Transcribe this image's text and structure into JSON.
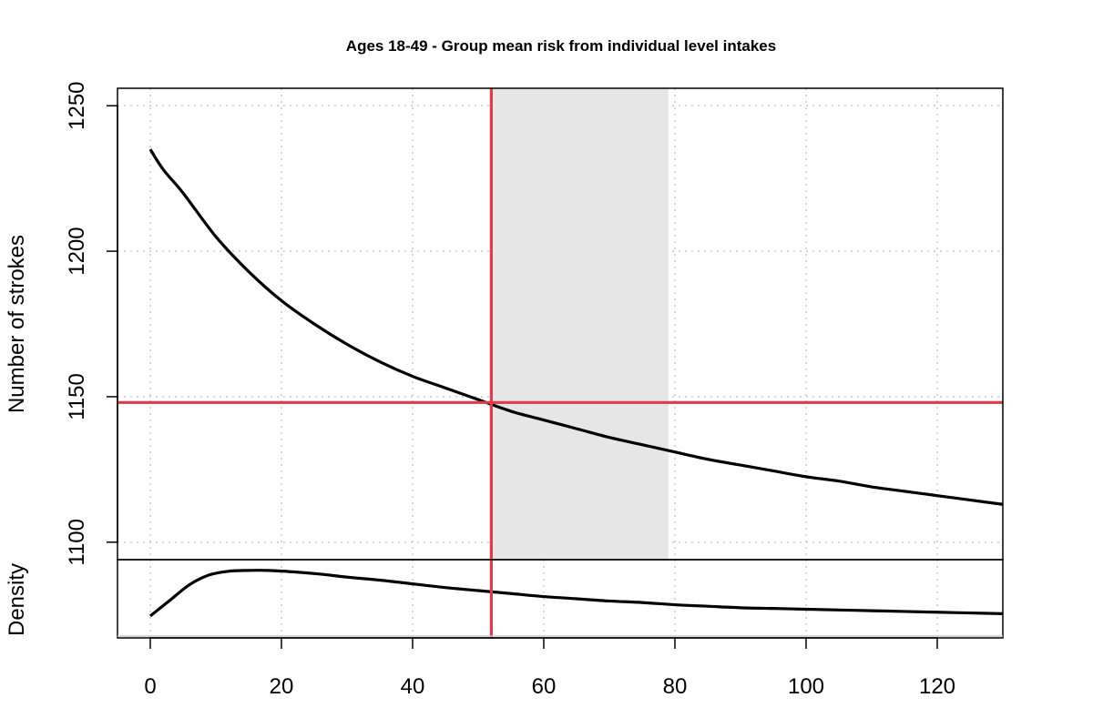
{
  "chart_data": {
    "type": "line",
    "title": "Ages 18-49 - Group mean risk from individual level intakes",
    "ylabel": "Number of strokes",
    "density_label": "Density",
    "xlim": [
      -5,
      130
    ],
    "x_ticks": [
      0,
      20,
      40,
      60,
      80,
      100,
      120
    ],
    "ylim": [
      1094,
      1256
    ],
    "y_ticks": [
      1100,
      1150,
      1200,
      1250
    ],
    "grid": true,
    "shaded_interval": [
      52,
      79
    ],
    "reference_x": 52,
    "reference_y": 1148,
    "colors": {
      "reference": "#df3b4e",
      "shade": "#e6e6e6",
      "curve": "#000000",
      "grid": "#c8c8c8"
    },
    "series": [
      {
        "x": [
          0,
          2,
          5,
          10,
          15,
          20,
          25,
          30,
          35,
          40,
          45,
          50,
          55,
          60,
          65,
          70,
          75,
          80,
          85,
          90,
          95,
          100,
          105,
          110,
          115,
          120,
          125,
          130
        ],
        "values": [
          1235,
          1228,
          1220,
          1205,
          1193,
          1183,
          1175,
          1168,
          1162,
          1157,
          1153,
          1149,
          1145,
          1142,
          1139,
          1136,
          1133.5,
          1131,
          1128.5,
          1126.5,
          1124.5,
          1122.5,
          1121,
          1119,
          1117.5,
          1116,
          1114.5,
          1113
        ]
      }
    ],
    "density": {
      "ylim": [
        0,
        1
      ],
      "x": [
        0,
        3,
        6,
        9,
        12,
        15,
        18,
        22,
        26,
        30,
        35,
        40,
        45,
        50,
        55,
        60,
        65,
        70,
        75,
        80,
        85,
        90,
        95,
        100,
        105,
        110,
        115,
        120,
        125,
        130
      ],
      "values": [
        0.27,
        0.48,
        0.69,
        0.82,
        0.87,
        0.88,
        0.88,
        0.86,
        0.83,
        0.79,
        0.75,
        0.7,
        0.65,
        0.61,
        0.57,
        0.53,
        0.5,
        0.47,
        0.45,
        0.42,
        0.4,
        0.38,
        0.37,
        0.36,
        0.35,
        0.34,
        0.33,
        0.32,
        0.31,
        0.3
      ]
    }
  }
}
